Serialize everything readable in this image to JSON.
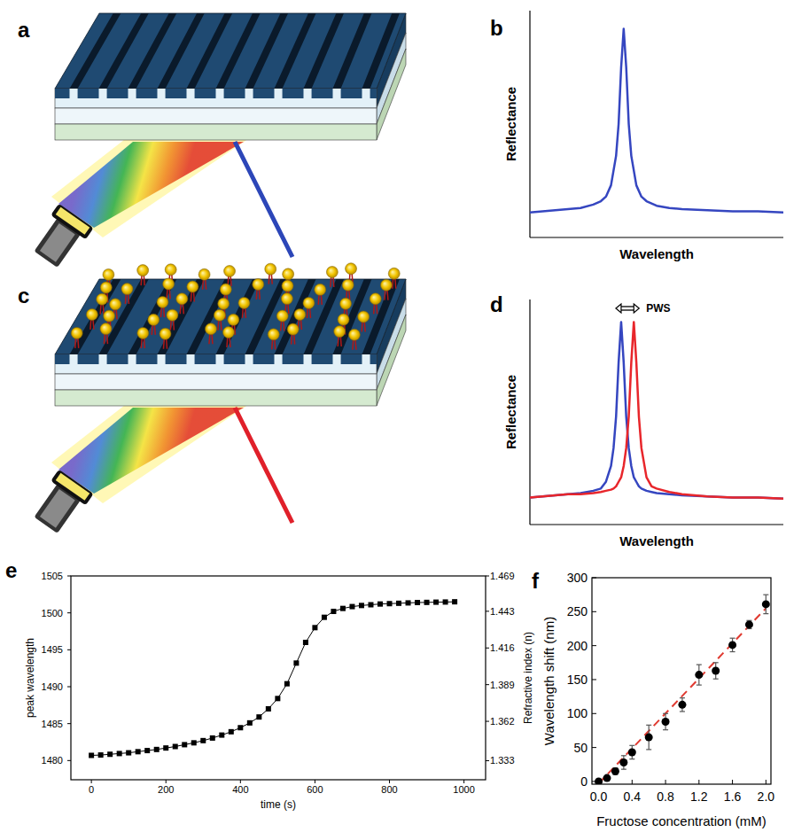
{
  "chart_data": [
    {
      "type": "diagram",
      "title": "a",
      "color": "#2c46b8"
    },
    {
      "type": "line",
      "title": "b",
      "xlabel": "Wavelength",
      "ylabel": "Reflectance",
      "tick_labels": false,
      "xlim": [
        0,
        100
      ],
      "ylim": [
        0,
        1
      ],
      "color": "#3546c0",
      "x": [
        0,
        5,
        10,
        15,
        20,
        25,
        28,
        30,
        32,
        34,
        35,
        36,
        37,
        38,
        39,
        40,
        42,
        44,
        46,
        50,
        55,
        60,
        70,
        80,
        90,
        100
      ],
      "values": [
        0.11,
        0.115,
        0.12,
        0.125,
        0.13,
        0.145,
        0.16,
        0.18,
        0.23,
        0.36,
        0.5,
        0.75,
        0.92,
        0.75,
        0.5,
        0.36,
        0.23,
        0.18,
        0.16,
        0.14,
        0.13,
        0.125,
        0.12,
        0.115,
        0.115,
        0.11
      ]
    },
    {
      "type": "diagram",
      "title": "c",
      "marker": "particle",
      "color": "#e0202a"
    },
    {
      "type": "line",
      "title": "d",
      "xlabel": "Wavelength",
      "ylabel": "Reflectance",
      "annotations": [
        "PWS"
      ],
      "tick_labels": false,
      "xlim": [
        0,
        100
      ],
      "ylim": [
        0,
        1
      ],
      "x": [
        0,
        5,
        10,
        15,
        20,
        25,
        28,
        30,
        32,
        33,
        34,
        35,
        36,
        37,
        38,
        39,
        40,
        41,
        42,
        43,
        44,
        46,
        48,
        50,
        55,
        60,
        70,
        80,
        90,
        100
      ],
      "series": [
        {
          "color": "#3546c0",
          "values": [
            0.12,
            0.125,
            0.13,
            0.135,
            0.14,
            0.15,
            0.16,
            0.19,
            0.26,
            0.34,
            0.48,
            0.72,
            0.9,
            0.72,
            0.48,
            0.34,
            0.26,
            0.21,
            0.19,
            0.17,
            0.16,
            0.15,
            0.145,
            0.14,
            0.135,
            0.13,
            0.125,
            0.12,
            0.12,
            0.115
          ]
        },
        {
          "color": "#e8262b",
          "values": [
            0.12,
            0.125,
            0.13,
            0.135,
            0.135,
            0.14,
            0.145,
            0.15,
            0.155,
            0.16,
            0.17,
            0.19,
            0.21,
            0.26,
            0.34,
            0.48,
            0.72,
            0.9,
            0.72,
            0.48,
            0.34,
            0.21,
            0.17,
            0.16,
            0.145,
            0.135,
            0.125,
            0.12,
            0.12,
            0.115
          ]
        }
      ]
    },
    {
      "type": "line",
      "title": "e",
      "xlabel": "time (s)",
      "ylabel": "peak wavelength",
      "y2label": "Refractive index (n)",
      "marker": "square",
      "color": "#000000",
      "xlim": [
        -55,
        1058
      ],
      "xticks": [
        0,
        200,
        400,
        600,
        800,
        1000
      ],
      "ylim": [
        1477.4,
        1505
      ],
      "yticks": [
        1480,
        1485,
        1490,
        1495,
        1500,
        1505
      ],
      "y2lim": [
        1.319,
        1.469
      ],
      "y2ticks": [
        1.333,
        1.362,
        1.389,
        1.416,
        1.443,
        1.469
      ],
      "x": [
        0,
        25,
        50,
        75,
        100,
        125,
        150,
        175,
        200,
        225,
        250,
        275,
        300,
        325,
        350,
        375,
        400,
        425,
        450,
        475,
        500,
        525,
        550,
        575,
        600,
        625,
        650,
        675,
        700,
        725,
        750,
        775,
        800,
        825,
        850,
        875,
        900,
        925,
        950,
        975
      ],
      "values": [
        1480.7,
        1480.75,
        1480.85,
        1480.95,
        1481.05,
        1481.2,
        1481.35,
        1481.5,
        1481.7,
        1481.9,
        1482.15,
        1482.4,
        1482.7,
        1483.05,
        1483.45,
        1483.9,
        1484.45,
        1485.1,
        1485.9,
        1487.0,
        1488.4,
        1490.4,
        1493.2,
        1496.0,
        1498.0,
        1499.4,
        1500.2,
        1500.6,
        1500.85,
        1501.0,
        1501.1,
        1501.2,
        1501.25,
        1501.3,
        1501.35,
        1501.4,
        1501.42,
        1501.45,
        1501.47,
        1501.5
      ]
    },
    {
      "type": "scatter",
      "title": "f",
      "xlabel": "Fructose concentration (mM)",
      "ylabel": "Wavelength shift (nm)",
      "xlim": [
        -0.08,
        2.06
      ],
      "xticks": [
        {
          "value": 0,
          "label": "0.0"
        },
        0.4,
        0.8,
        1.2,
        1.6,
        {
          "value": 2,
          "label": "2.0"
        }
      ],
      "ylim": [
        -4,
        300
      ],
      "yticks": [
        0,
        50,
        100,
        150,
        200,
        250,
        300
      ],
      "series": [
        {
          "type": "scatter",
          "marker": "circle",
          "color": "#000000",
          "x": [
            0,
            0.1,
            0.2,
            0.3,
            0.4,
            0.6,
            0.8,
            1.0,
            1.2,
            1.4,
            1.6,
            1.8,
            2.0
          ],
          "values": [
            0,
            5,
            15,
            28,
            43,
            65,
            88,
            113,
            157,
            163,
            201,
            231,
            261
          ],
          "errors": [
            0,
            3,
            5,
            10,
            10,
            18,
            12,
            10,
            15,
            12,
            10,
            6,
            14
          ]
        },
        {
          "type": "line",
          "line_style": "dashed",
          "color": "#e03a30",
          "x": [
            0,
            2.0
          ],
          "values": [
            -3,
            255
          ]
        }
      ]
    }
  ]
}
